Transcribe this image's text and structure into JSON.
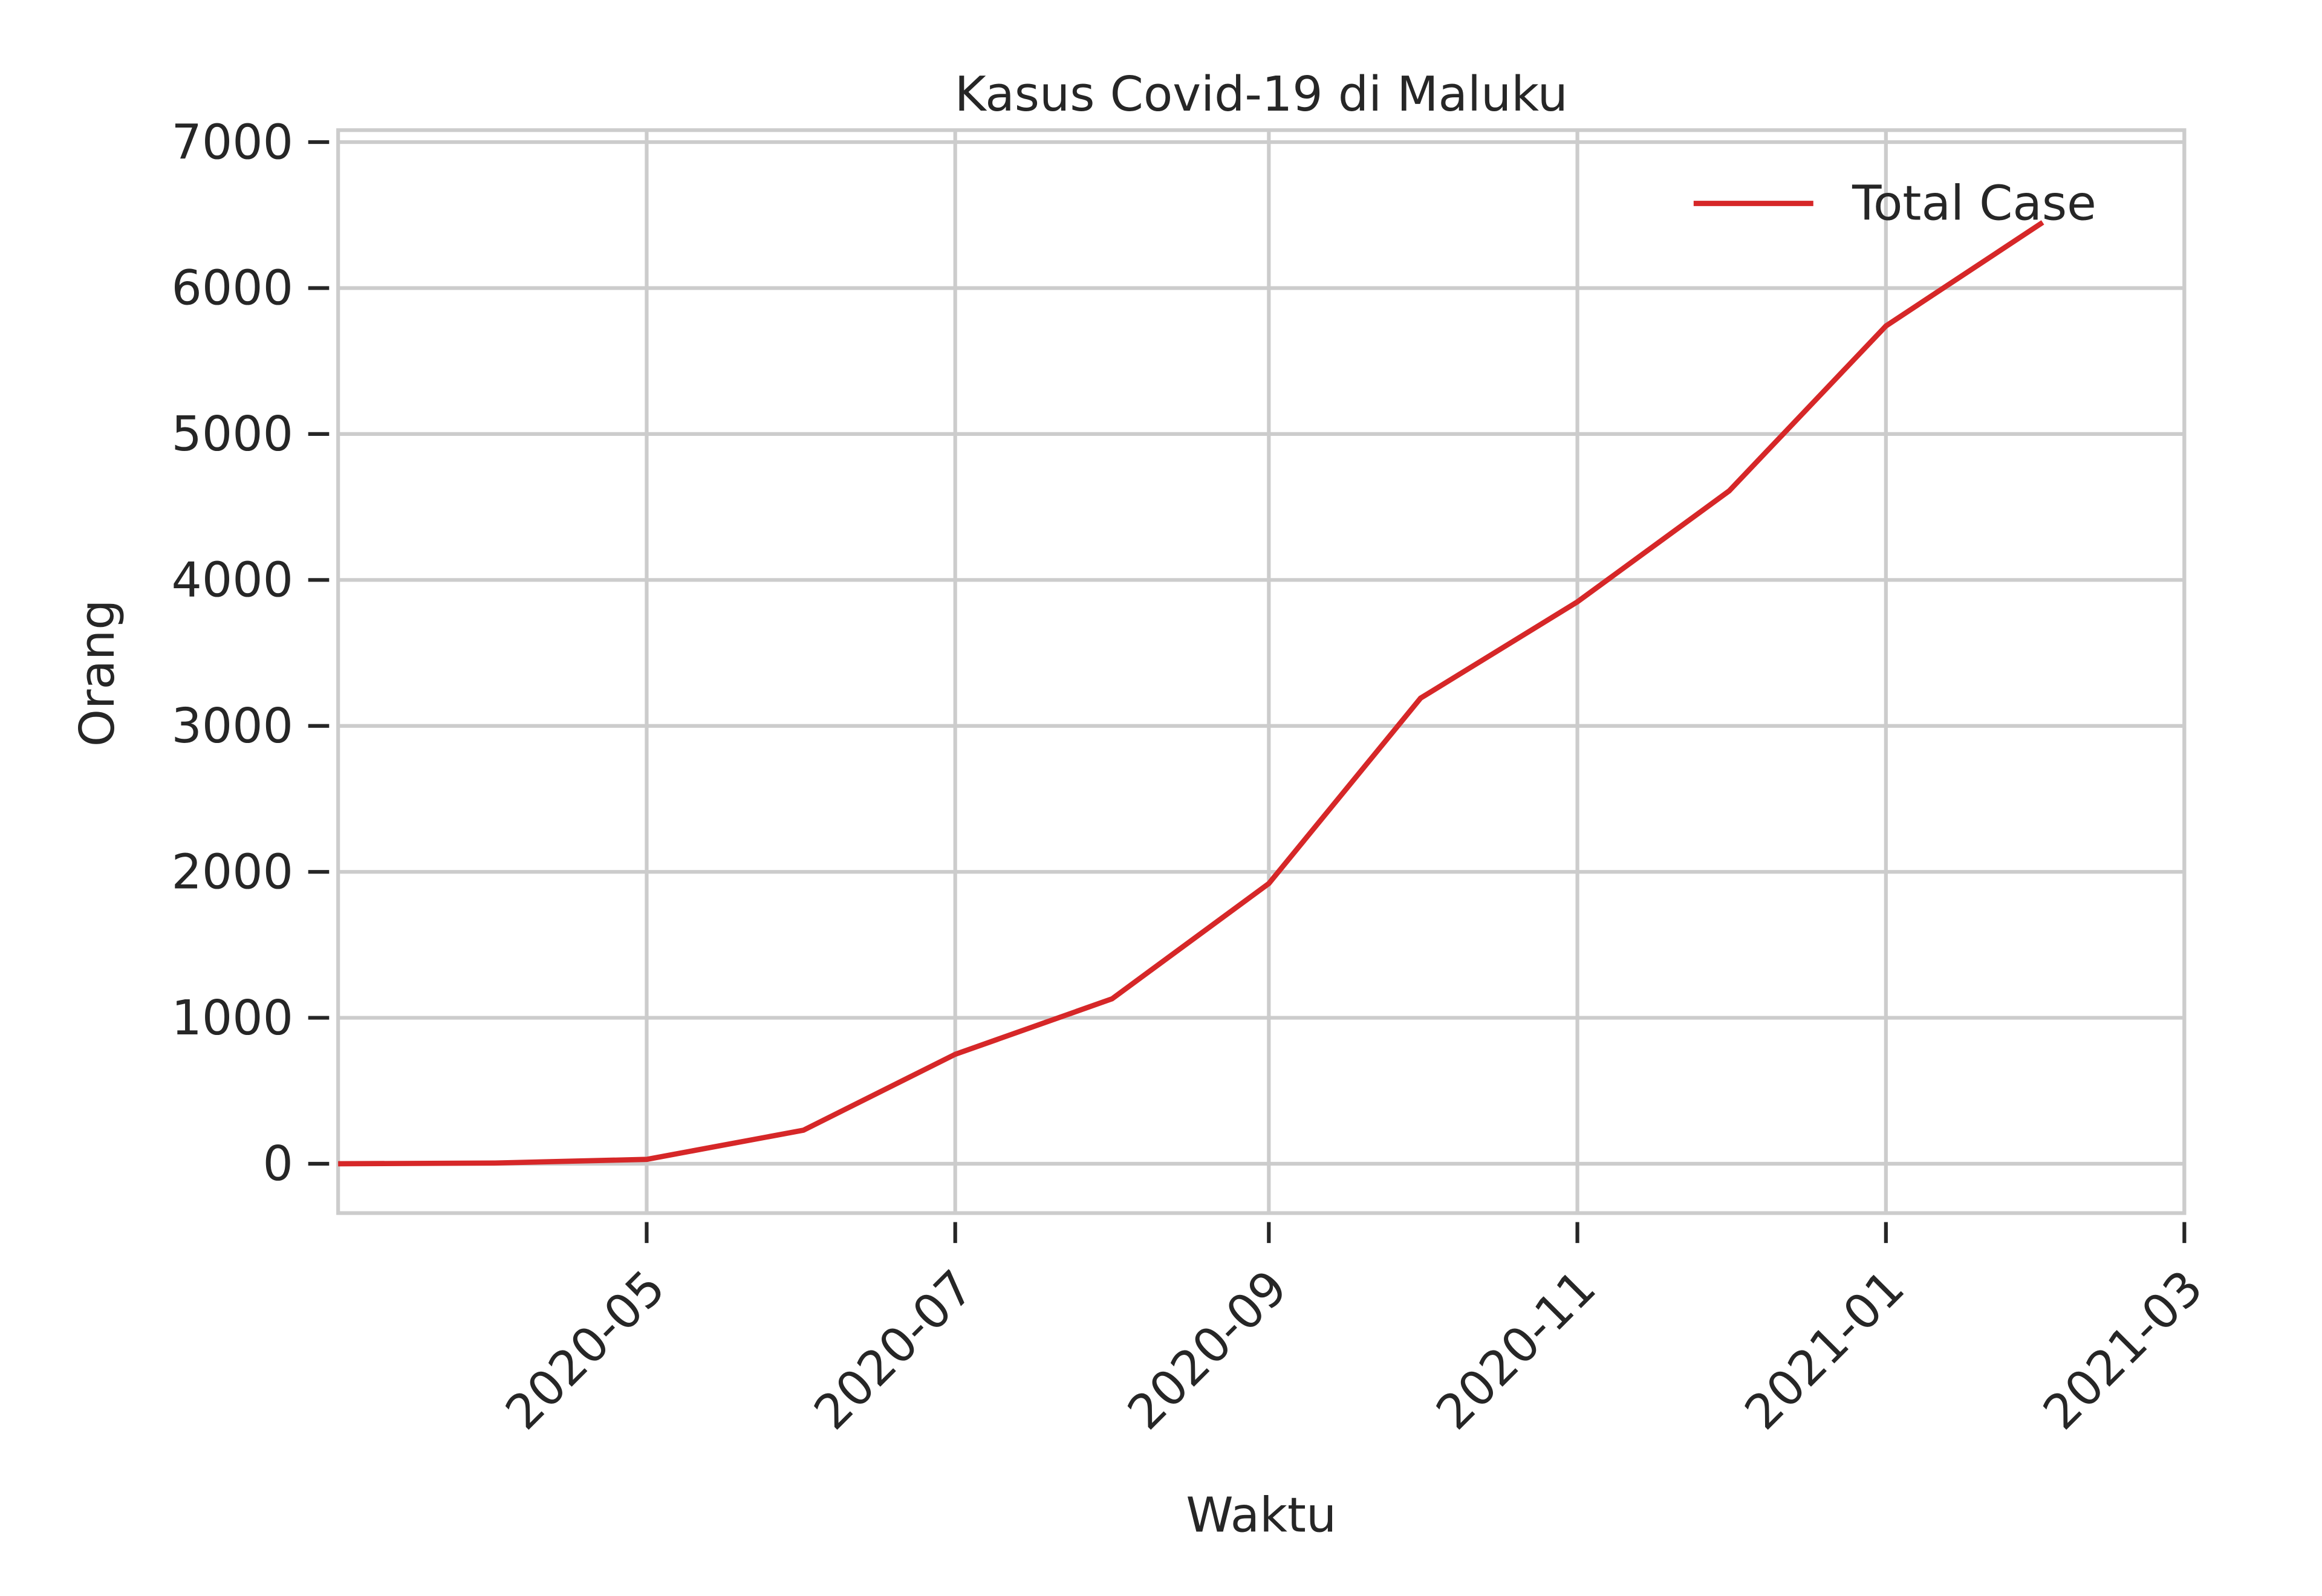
{
  "chart_data": {
    "type": "line",
    "title": "Kasus Covid-19 di Maluku",
    "xlabel": "Waktu",
    "ylabel": "Orang",
    "x": [
      "2020-03",
      "2020-04",
      "2020-05",
      "2020-06",
      "2020-07",
      "2020-08",
      "2020-09",
      "2020-10",
      "2020-11",
      "2020-12",
      "2021-01",
      "2021-02"
    ],
    "series": [
      {
        "name": "Total Case",
        "color": "#d62728",
        "values": [
          0,
          5,
          30,
          230,
          750,
          1130,
          1920,
          3190,
          3850,
          4610,
          5740,
          6450
        ]
      }
    ],
    "xlim": [
      "2020-03",
      "2021-03"
    ],
    "xticks": [
      "2020-05",
      "2020-07",
      "2020-09",
      "2020-11",
      "2021-01",
      "2021-03"
    ],
    "ylim": [
      -338,
      7082
    ],
    "yticks": [
      0,
      1000,
      2000,
      3000,
      4000,
      5000,
      6000,
      7000
    ],
    "grid": true,
    "legend": "upper right"
  }
}
